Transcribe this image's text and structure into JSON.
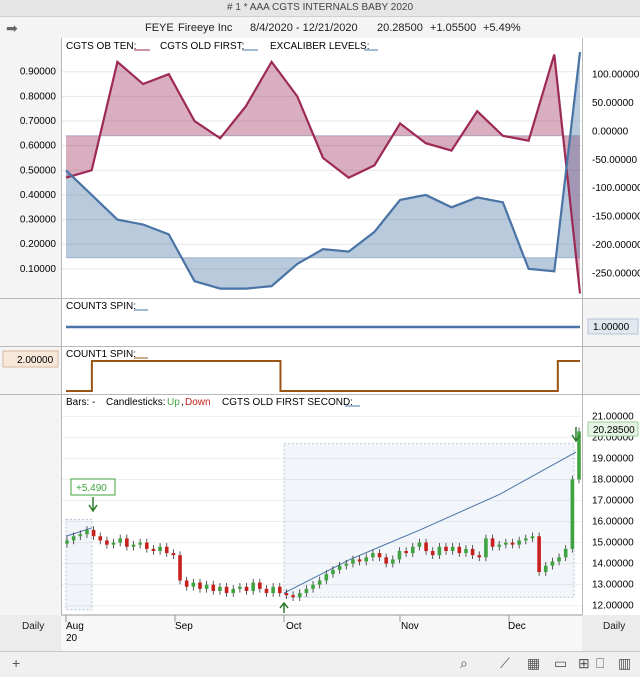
{
  "window": {
    "title": "# 1 * AAA  CGTS INTERNALS BABY 2020"
  },
  "symbol_bar": {
    "symbol": "FEYE",
    "name": "Fireeye Inc",
    "date_range": "8/4/2020 - 12/21/2020",
    "last_price": "20.28500",
    "change": "+1.05500",
    "change_pct": "+5.49%"
  },
  "footer": {
    "left_period": "Daily",
    "right_period": "Daily"
  },
  "colors": {
    "crimson": "#9c2a55",
    "blue": "#4a73a6",
    "brown": "#9a5416",
    "green": "#3fa33f",
    "red": "#c8201c"
  },
  "chart_data": [
    {
      "type": "line",
      "panel": "CGTS internals",
      "legend": [
        "CGTS OB TEN:",
        "CGTS OLD FIRST:",
        "EXCALIBER LEVELS:"
      ],
      "left_ticks": [
        "0.90000",
        "0.80000",
        "0.70000",
        "0.60000",
        "0.50000",
        "0.40000",
        "0.30000",
        "0.20000",
        "0.10000"
      ],
      "right_ticks": [
        "100.00000",
        "50.00000",
        "0.00000",
        "-50.00000",
        "-100.00000",
        "-150.00000",
        "-200.00000",
        "-250.00000"
      ],
      "ylim_left": [
        -0.01,
        0.98
      ],
      "ylim_right": [
        -290,
        140
      ],
      "x": [
        "8/4",
        "8/10",
        "8/17",
        "8/24",
        "8/31",
        "9/7",
        "9/14",
        "9/21",
        "9/28",
        "10/5",
        "10/12",
        "10/19",
        "10/26",
        "11/2",
        "11/9",
        "11/16",
        "11/23",
        "11/30",
        "12/7",
        "12/14",
        "12/21"
      ],
      "levels": [
        0.64,
        0.145
      ],
      "series": [
        {
          "name": "CGTS OB TEN",
          "axis": "left",
          "values": [
            0.47,
            0.5,
            0.94,
            0.85,
            0.89,
            0.7,
            0.63,
            0.76,
            0.94,
            0.8,
            0.55,
            0.47,
            0.52,
            0.69,
            0.61,
            0.58,
            0.74,
            0.64,
            0.62,
            0.97,
            0.0
          ]
        },
        {
          "name": "CGTS OLD FIRST",
          "axis": "left",
          "values": [
            0.5,
            0.4,
            0.3,
            0.28,
            0.24,
            0.05,
            0.02,
            0.02,
            0.03,
            0.12,
            0.18,
            0.17,
            0.25,
            0.38,
            0.4,
            0.35,
            0.39,
            0.37,
            0.1,
            0.09,
            0.98
          ]
        }
      ]
    },
    {
      "type": "line",
      "panel": "COUNT3 SPIN",
      "legend": "COUNT3 SPIN:",
      "value_label": "1.00000",
      "values": [
        1,
        1
      ]
    },
    {
      "type": "line",
      "panel": "COUNT1 SPIN",
      "legend": "COUNT1 SPIN:",
      "value_label": "2.00000",
      "x": [
        "8/4",
        "8/11",
        "9/28",
        "10/1",
        "12/11",
        "12/15",
        "12/21"
      ],
      "values": [
        1,
        2,
        2,
        1,
        1,
        2,
        2
      ]
    },
    {
      "type": "candlestick",
      "panel": "Price",
      "legend": {
        "bars": "Bars:",
        "bars_value": "-",
        "candlesticks": "Candlesticks:",
        "up": "Up",
        "sep": ",",
        "down": "Down",
        "third": "CGTS OLD FIRST SECOND:"
      },
      "right_ticks": [
        "21.00000",
        "20.00000",
        "19.00000",
        "18.00000",
        "17.00000",
        "16.00000",
        "15.00000",
        "14.00000",
        "13.00000",
        "12.00000"
      ],
      "ylim": [
        11.7,
        21.3
      ],
      "last_label": "20.28500",
      "annotation": "+5.490",
      "x_labels": [
        "Aug",
        "20",
        "Sep",
        "Oct",
        "Nov",
        "Dec"
      ],
      "closes": [
        15.1,
        15.3,
        15.4,
        15.6,
        15.3,
        15.1,
        14.9,
        15.0,
        15.2,
        14.8,
        14.9,
        15.0,
        14.7,
        14.6,
        14.8,
        14.5,
        14.4,
        13.2,
        12.9,
        13.1,
        12.8,
        13.0,
        12.7,
        12.9,
        12.6,
        12.8,
        12.9,
        12.7,
        13.1,
        12.8,
        12.6,
        12.9,
        12.6,
        12.5,
        12.4,
        12.6,
        12.8,
        13.0,
        13.2,
        13.5,
        13.7,
        13.9,
        14.0,
        14.2,
        14.1,
        14.3,
        14.5,
        14.3,
        14.0,
        14.2,
        14.6,
        14.5,
        14.8,
        15.0,
        14.6,
        14.4,
        14.8,
        14.6,
        14.8,
        14.5,
        14.7,
        14.4,
        14.3,
        15.2,
        14.8,
        14.9,
        15.0,
        14.9,
        15.1,
        15.2,
        15.3,
        13.6,
        13.9,
        14.1,
        14.3,
        14.7,
        18.0,
        20.285
      ]
    }
  ]
}
